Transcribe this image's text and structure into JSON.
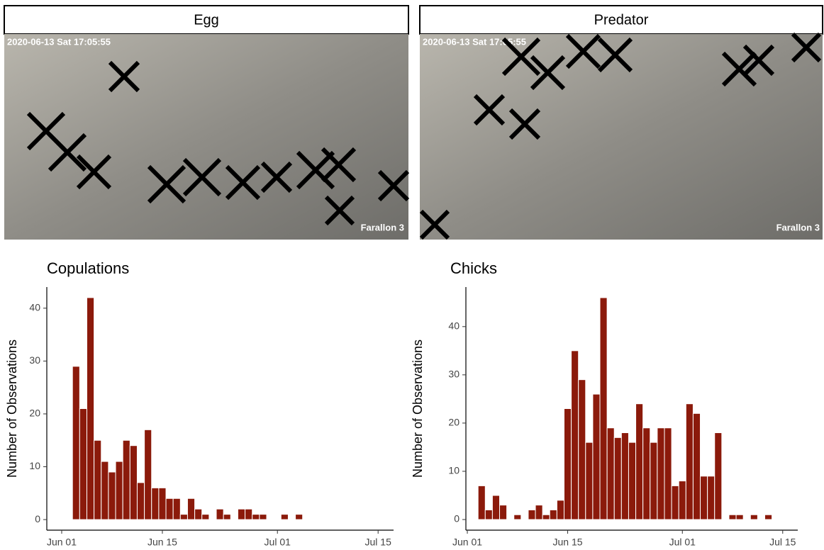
{
  "panels": [
    {
      "label": "Egg",
      "timestamp": "2020-06-13 Sat 17:05:55",
      "camera": "Farallon 3"
    },
    {
      "label": "Predator",
      "timestamp": "2020-06-13 Sat 17:05:55",
      "camera": "Farallon 3"
    }
  ],
  "chart_data": [
    {
      "type": "bar",
      "title": "Copulations",
      "y_label": "Number of Observations",
      "color": "#8b1a0b",
      "x": [
        3,
        4,
        5,
        6,
        7,
        8,
        9,
        10,
        11,
        12,
        13,
        14,
        15,
        16,
        17,
        18,
        19,
        20,
        21,
        23,
        24,
        26,
        27,
        28,
        29,
        32,
        34
      ],
      "values": [
        29,
        21,
        42,
        15,
        11,
        9,
        11,
        15,
        14,
        7,
        17,
        6,
        6,
        4,
        4,
        1,
        4,
        2,
        1,
        2,
        1,
        2,
        2,
        1,
        1,
        1,
        1
      ],
      "xlim": [
        -1.07,
        47.15
      ],
      "ylim": [
        -2,
        44
      ],
      "xticks": [
        {
          "value": 1,
          "label": "Jun 01"
        },
        {
          "value": 15,
          "label": "Jun 15"
        },
        {
          "value": 31,
          "label": "Jul 01"
        },
        {
          "value": 45,
          "label": "Jul 15"
        }
      ],
      "yticks": [
        0,
        10,
        20,
        30,
        40
      ]
    },
    {
      "type": "bar",
      "title": "Chicks",
      "y_label": "Number of Observations",
      "color": "#8b1a0b",
      "x": [
        3,
        4,
        5,
        6,
        8,
        10,
        11,
        12,
        13,
        14,
        15,
        16,
        17,
        18,
        19,
        20,
        21,
        22,
        23,
        24,
        25,
        26,
        27,
        28,
        29,
        30,
        31,
        32,
        33,
        34,
        35,
        36,
        38,
        39,
        41,
        43
      ],
      "values": [
        7,
        2,
        5,
        3,
        1,
        2,
        3,
        1,
        2,
        4,
        23,
        35,
        29,
        16,
        26,
        46,
        19,
        17,
        18,
        16,
        24,
        19,
        16,
        19,
        19,
        7,
        8,
        24,
        22,
        9,
        9,
        18,
        1,
        1,
        1,
        1
      ],
      "xlim": [
        0.8,
        47.1
      ],
      "ylim": [
        -2.2,
        48.2
      ],
      "xticks": [
        {
          "value": 1,
          "label": "Jun 01"
        },
        {
          "value": 15,
          "label": "Jun 15"
        },
        {
          "value": 31,
          "label": "Jul 01"
        },
        {
          "value": 45,
          "label": "Jul 15"
        }
      ],
      "yticks": [
        0,
        10,
        20,
        30,
        40
      ]
    }
  ]
}
